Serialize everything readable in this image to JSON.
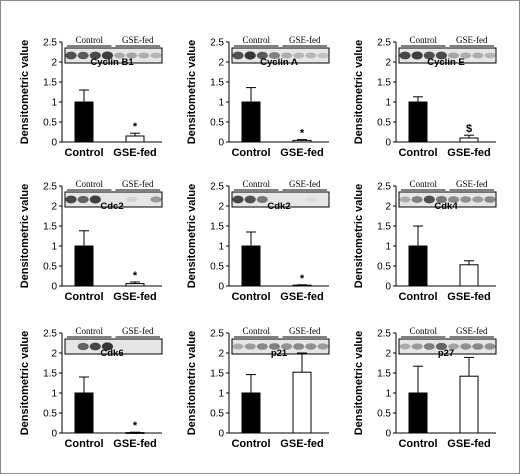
{
  "chart_data": [
    {
      "type": "bar",
      "protein": "Cyclin B1",
      "ylabel": "Densitometric value",
      "ylim": [
        0,
        2.5
      ],
      "yticks": [
        "0",
        "0.5",
        "1",
        "1.5",
        "2",
        "2.5"
      ],
      "categories": [
        "Control",
        "GSE-fed"
      ],
      "values": [
        1.0,
        0.15
      ],
      "errors": [
        0.3,
        0.07
      ],
      "blot_groups": [
        "Control",
        "GSE-fed"
      ],
      "significance": [
        "",
        "*"
      ]
    },
    {
      "type": "bar",
      "protein": "Cyclin A",
      "ylabel": "Densitometric value",
      "ylim": [
        0,
        2.5
      ],
      "yticks": [
        "0",
        "0.5",
        "1",
        "1.5",
        "2",
        "2.5"
      ],
      "categories": [
        "Control",
        "GSE-fed"
      ],
      "values": [
        1.0,
        0.04
      ],
      "errors": [
        0.36,
        0.02
      ],
      "blot_groups": [
        "Control",
        "GSE-fed"
      ],
      "significance": [
        "",
        "*"
      ]
    },
    {
      "type": "bar",
      "protein": "Cyclin E",
      "ylabel": "Densitometric value",
      "ylim": [
        0,
        2.5
      ],
      "yticks": [
        "0",
        "0.5",
        "1",
        "1.5",
        "2",
        "2.5"
      ],
      "categories": [
        "Control",
        "GSE-fed"
      ],
      "values": [
        1.0,
        0.1
      ],
      "errors": [
        0.13,
        0.07
      ],
      "blot_groups": [
        "Control",
        "GSE-fed"
      ],
      "significance": [
        "",
        "$"
      ]
    },
    {
      "type": "bar",
      "protein": "Cdc2",
      "ylabel": "Densitometric value",
      "ylim": [
        0,
        2.5
      ],
      "yticks": [
        "0",
        "0.5",
        "1",
        "1.5",
        "2",
        "2.5"
      ],
      "categories": [
        "Control",
        "GSE-fed"
      ],
      "values": [
        1.0,
        0.06
      ],
      "errors": [
        0.38,
        0.04
      ],
      "blot_groups": [
        "Control",
        "GSE-fed"
      ],
      "significance": [
        "",
        "*"
      ]
    },
    {
      "type": "bar",
      "protein": "Cdk2",
      "ylabel": "Densitometric value",
      "ylim": [
        0,
        2.5
      ],
      "yticks": [
        "0",
        "0.5",
        "1",
        "1.5",
        "2",
        "2.5"
      ],
      "categories": [
        "Control",
        "GSE-fed"
      ],
      "values": [
        1.0,
        0.02
      ],
      "errors": [
        0.35,
        0.01
      ],
      "blot_groups": [
        "Control",
        "GSE-fed"
      ],
      "significance": [
        "",
        "*"
      ]
    },
    {
      "type": "bar",
      "protein": "Cdk4",
      "ylabel": "Densitometric value",
      "ylim": [
        0,
        2.5
      ],
      "yticks": [
        "0",
        "0.5",
        "1",
        "1.5",
        "2",
        "2.5"
      ],
      "categories": [
        "Control",
        "GSE-fed"
      ],
      "values": [
        1.0,
        0.53
      ],
      "errors": [
        0.5,
        0.1
      ],
      "blot_groups": [
        "Control",
        "GSE-fed"
      ],
      "significance": [
        "",
        ""
      ]
    },
    {
      "type": "bar",
      "protein": "Cdk6",
      "ylabel": "Densitometric value",
      "ylim": [
        0,
        2.5
      ],
      "yticks": [
        "0",
        "0.5",
        "1",
        "1.5",
        "2",
        "2.5"
      ],
      "categories": [
        "Control",
        "GSE-fed"
      ],
      "values": [
        1.0,
        0.01
      ],
      "errors": [
        0.4,
        0.01
      ],
      "blot_groups": [
        "Control",
        "GSE-fed"
      ],
      "significance": [
        "",
        "*"
      ]
    },
    {
      "type": "bar",
      "protein": "p21",
      "ylabel": "Densitometric value",
      "ylim": [
        0,
        2.5
      ],
      "yticks": [
        "0",
        "0.5",
        "1",
        "1.5",
        "2",
        "2.5"
      ],
      "categories": [
        "Control",
        "GSE-fed"
      ],
      "values": [
        1.0,
        1.52
      ],
      "errors": [
        0.46,
        0.48
      ],
      "blot_groups": [
        "Control",
        "GSE-fed"
      ],
      "significance": [
        "",
        ""
      ]
    },
    {
      "type": "bar",
      "protein": "p27",
      "ylabel": "Densitometric value",
      "ylim": [
        0,
        2.5
      ],
      "yticks": [
        "0",
        "0.5",
        "1",
        "1.5",
        "2",
        "2.5"
      ],
      "categories": [
        "Control",
        "GSE-fed"
      ],
      "values": [
        1.0,
        1.42
      ],
      "errors": [
        0.67,
        0.47
      ],
      "blot_groups": [
        "Control",
        "GSE-fed"
      ],
      "significance": [
        "",
        ""
      ]
    }
  ],
  "colors": {
    "control_bar": "#000000",
    "gse_bar": "#ffffff",
    "axis": "#000000",
    "blot_bg": "#e6e6e6",
    "band": "#2b2b2b"
  },
  "blot_bands": [
    {
      "control": [
        0.8,
        0.75,
        0.85,
        0.9
      ],
      "gse": [
        0.3,
        0.35,
        0.3,
        0.25
      ]
    },
    {
      "control": [
        0.8,
        0.95,
        0.75,
        0.55
      ],
      "gse": [
        0.3,
        0.25,
        0.25,
        0.2
      ]
    },
    {
      "control": [
        0.85,
        0.9,
        0.8,
        0.85
      ],
      "gse": [
        0.35,
        0.3,
        0.3,
        0.25
      ]
    },
    {
      "control": [
        0.85,
        0.7,
        0.9,
        0.0
      ],
      "gse": [
        0.0,
        0.1,
        0.0,
        0.4
      ]
    },
    {
      "control": [
        0.85,
        0.8,
        0.6,
        0.0
      ],
      "gse": [
        0.0,
        0.0,
        0.05,
        0.0
      ]
    },
    {
      "control": [
        0.3,
        0.55,
        0.8,
        0.6
      ],
      "gse": [
        0.5,
        0.45,
        0.4,
        0.5
      ]
    },
    {
      "control": [
        0.0,
        0.7,
        0.85,
        0.95
      ],
      "gse": [
        0.0,
        0.0,
        0.0,
        0.0
      ]
    },
    {
      "control": [
        0.3,
        0.4,
        0.5,
        0.55
      ],
      "gse": [
        0.45,
        0.5,
        0.45,
        0.4
      ]
    },
    {
      "control": [
        0.3,
        0.4,
        0.55,
        0.7
      ],
      "gse": [
        0.35,
        0.45,
        0.5,
        0.45
      ]
    }
  ]
}
